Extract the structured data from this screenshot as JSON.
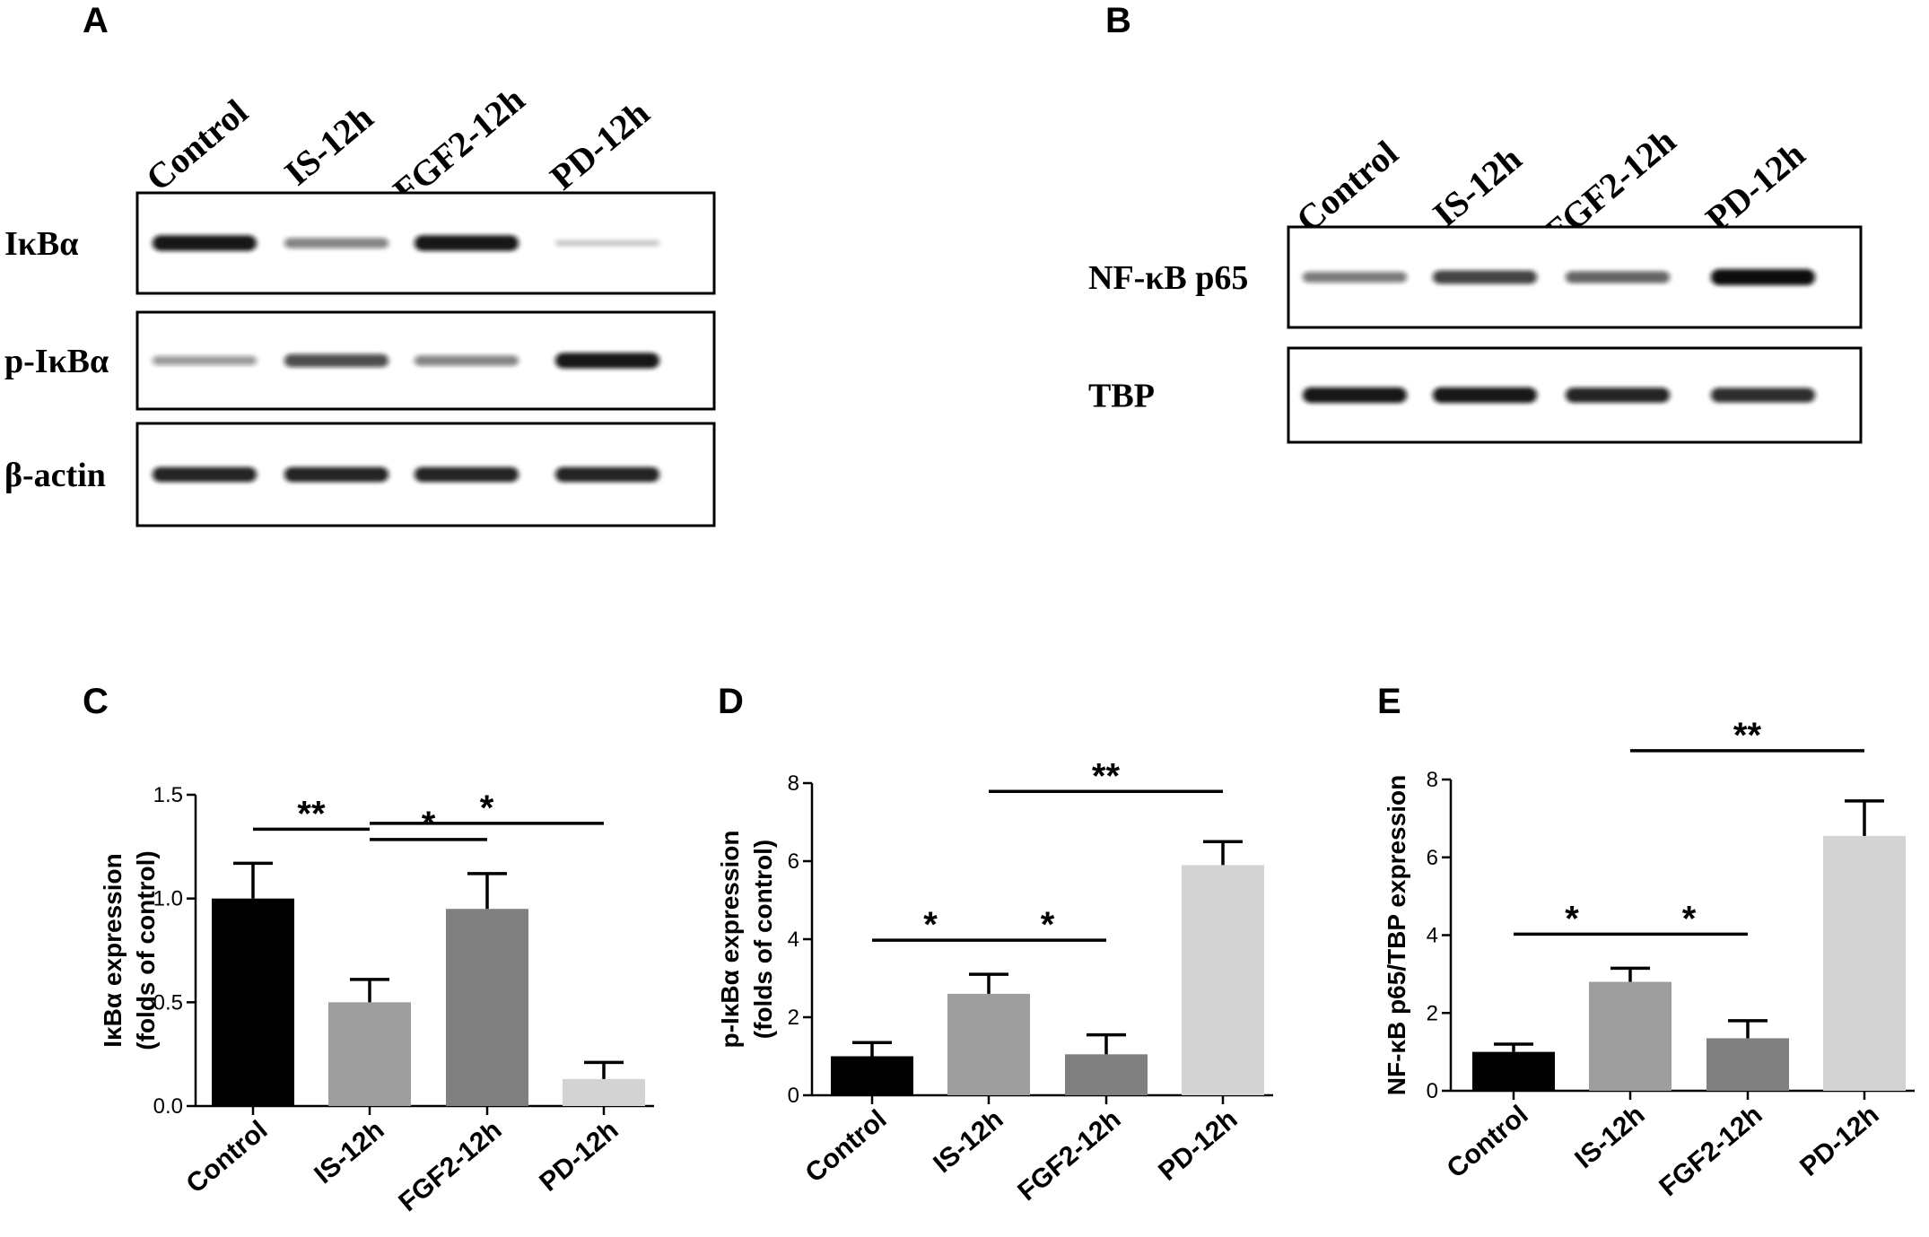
{
  "panels": {
    "A": {
      "letter": "A",
      "lanes": [
        "Control",
        "IS-12h",
        "FGF2-12h",
        "PD-12h"
      ],
      "rows": [
        {
          "label": "IκBα",
          "intensity": [
            0.95,
            0.45,
            0.95,
            0.1
          ]
        },
        {
          "label": "p-IκBα",
          "intensity": [
            0.35,
            0.7,
            0.45,
            0.95
          ]
        },
        {
          "label": "β-actin",
          "intensity": [
            0.9,
            0.9,
            0.9,
            0.9
          ]
        }
      ]
    },
    "B": {
      "letter": "B",
      "lanes": [
        "Control",
        "IS-12h",
        "FGF2-12h",
        "PD-12h"
      ],
      "rows": [
        {
          "label": "NF-κB p65",
          "intensity": [
            0.5,
            0.75,
            0.6,
            1.0
          ]
        },
        {
          "label": "TBP",
          "intensity": [
            0.95,
            0.95,
            0.9,
            0.85
          ]
        }
      ]
    }
  },
  "colors": {
    "control": "#000000",
    "is_12h": "#9e9e9e",
    "fgf2_12h": "#808080",
    "pd_12h": "#d3d3d3",
    "band": "#111111"
  },
  "chart_data": [
    {
      "letter": "C",
      "type": "bar",
      "categories": [
        "Control",
        "IS-12h",
        "FGF2-12h",
        "PD-12h"
      ],
      "values": [
        1.0,
        0.5,
        0.95,
        0.13
      ],
      "errors": [
        0.17,
        0.11,
        0.17,
        0.08
      ],
      "ylabel": [
        "IκBα expression",
        "(folds of control)"
      ],
      "ylim": [
        0,
        1.5
      ],
      "yticks": [
        "0.0",
        "0.5",
        "1.0",
        "1.5"
      ],
      "grid": false,
      "significance": [
        {
          "from": 0,
          "to": 1,
          "label": "**"
        },
        {
          "from": 1,
          "to": 2,
          "label": "*"
        },
        {
          "from": 1,
          "to": 3,
          "label": "*"
        }
      ]
    },
    {
      "letter": "D",
      "type": "bar",
      "categories": [
        "Control",
        "IS-12h",
        "FGF2-12h",
        "PD-12h"
      ],
      "values": [
        1.0,
        2.6,
        1.05,
        5.9
      ],
      "errors": [
        0.35,
        0.5,
        0.5,
        0.6
      ],
      "ylabel": [
        "p-IκBα expression",
        "(folds of control)"
      ],
      "ylim": [
        0,
        8
      ],
      "yticks": [
        "0",
        "2",
        "4",
        "6",
        "8"
      ],
      "grid": false,
      "significance": [
        {
          "from": 0,
          "to": 1,
          "label": "*"
        },
        {
          "from": 1,
          "to": 2,
          "label": "*"
        },
        {
          "from": 1,
          "to": 3,
          "label": "**"
        }
      ]
    },
    {
      "letter": "E",
      "type": "bar",
      "categories": [
        "Control",
        "IS-12h",
        "FGF2-12h",
        "PD-12h"
      ],
      "values": [
        1.0,
        2.8,
        1.35,
        6.55
      ],
      "errors": [
        0.2,
        0.35,
        0.45,
        0.9
      ],
      "ylabel": [
        "NF-κB p65/TBP expression"
      ],
      "ylim": [
        0,
        8
      ],
      "yticks": [
        "0",
        "2",
        "4",
        "6",
        "8"
      ],
      "grid": false,
      "significance": [
        {
          "from": 0,
          "to": 1,
          "label": "*"
        },
        {
          "from": 1,
          "to": 2,
          "label": "*"
        },
        {
          "from": 1,
          "to": 3,
          "label": "**"
        }
      ]
    }
  ]
}
